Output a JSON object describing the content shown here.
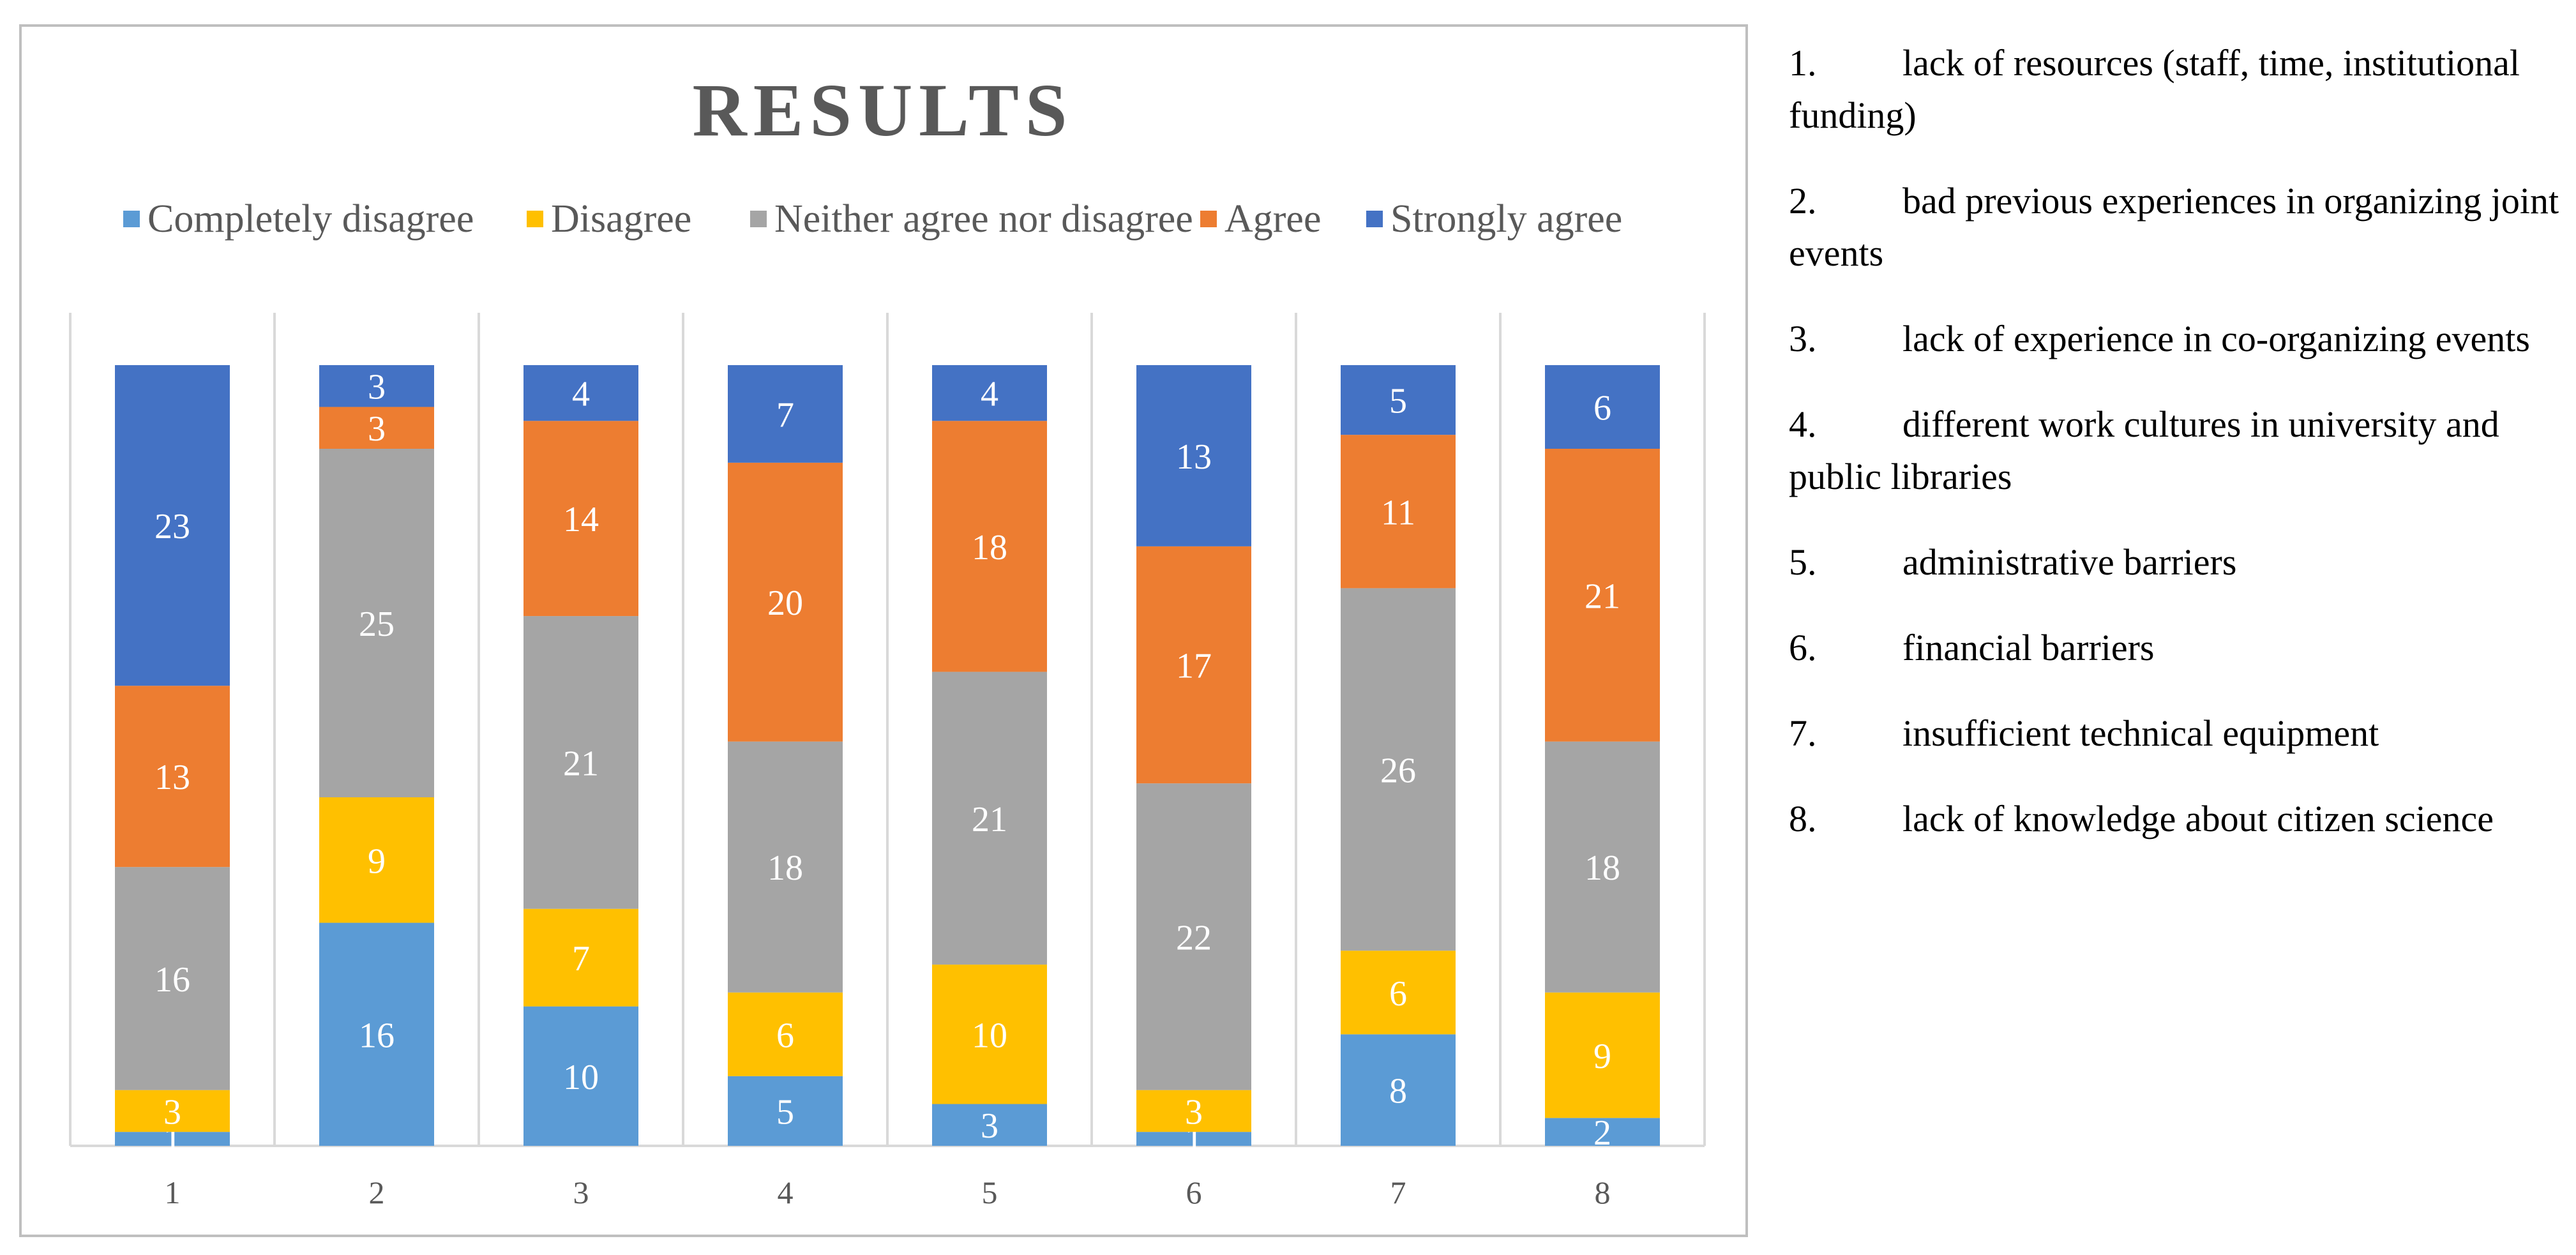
{
  "chart_data": {
    "type": "bar",
    "stacked": true,
    "title": "RESULTS",
    "categories": [
      "1",
      "2",
      "3",
      "4",
      "5",
      "6",
      "7",
      "8"
    ],
    "series": [
      {
        "name": "Completely disagree",
        "color": "#5b9bd5",
        "values": [
          1,
          16,
          10,
          5,
          3,
          1,
          8,
          2
        ]
      },
      {
        "name": "Disagree",
        "color": "#ffc000",
        "values": [
          3,
          9,
          7,
          6,
          10,
          3,
          6,
          9
        ]
      },
      {
        "name": "Neither agree nor disagree",
        "color": "#a5a5a5",
        "values": [
          16,
          25,
          21,
          18,
          21,
          22,
          26,
          18
        ]
      },
      {
        "name": "Agree",
        "color": "#ed7d31",
        "values": [
          13,
          3,
          14,
          20,
          18,
          17,
          11,
          21
        ]
      },
      {
        "name": "Strongly agree",
        "color": "#4472c4",
        "values": [
          23,
          3,
          4,
          7,
          4,
          13,
          5,
          6
        ]
      }
    ],
    "xlabel": "",
    "ylabel": "",
    "ylim": [
      0,
      56
    ],
    "legend_position": "top",
    "grid": false
  },
  "notes": [
    {
      "num": "1.",
      "text": "lack of resources (staff, time, institutional funding)"
    },
    {
      "num": "2.",
      "text": "bad previous experiences in organizing joint events"
    },
    {
      "num": "3.",
      "text": "lack of experience in co-organizing events"
    },
    {
      "num": "4.",
      "text": "different work cultures in university and public libraries"
    },
    {
      "num": "5.",
      "text": "administrative barriers"
    },
    {
      "num": "6.",
      "text": "financial barriers"
    },
    {
      "num": "7.",
      "text": "insufficient technical equipment"
    },
    {
      "num": "8.",
      "text": "lack of knowledge about citizen science"
    }
  ]
}
